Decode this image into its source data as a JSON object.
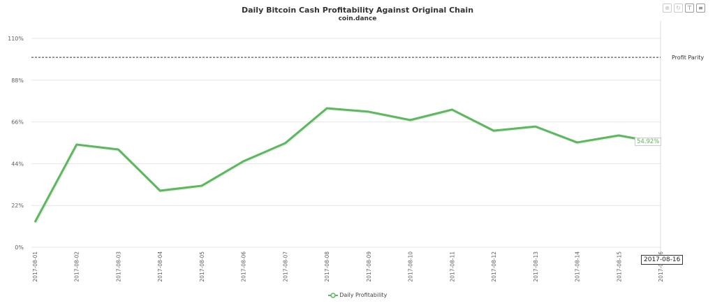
{
  "toolbar": {
    "zoom_icon": "zoom-icon",
    "reset_icon": "reset-icon",
    "pin_icon": "pin-icon",
    "menu_icon": "menu-icon"
  },
  "tooltip": {
    "x_value": "2017-08-16",
    "y_value": "54.92%"
  },
  "chart_data": {
    "type": "line",
    "title": "Daily Bitcoin Cash Profitability Against Original Chain",
    "subtitle": "coin.dance",
    "xlabel": "",
    "ylabel": "",
    "categories": [
      "2017-08-01",
      "2017-08-02",
      "2017-08-03",
      "2017-08-04",
      "2017-08-05",
      "2017-08-06",
      "2017-08-07",
      "2017-08-08",
      "2017-08-09",
      "2017-08-10",
      "2017-08-11",
      "2017-08-12",
      "2017-08-13",
      "2017-08-14",
      "2017-08-15",
      "2017-08-16"
    ],
    "series": [
      {
        "name": "Daily Profitability",
        "color": "#5cb85c",
        "values": [
          13.2,
          54.1,
          51.5,
          29.8,
          32.4,
          45.3,
          54.8,
          73.2,
          71.4,
          67.0,
          72.5,
          61.4,
          63.6,
          55.2,
          58.9,
          54.92
        ]
      }
    ],
    "ylim": [
      0,
      110
    ],
    "yticks": [
      "0%",
      "22%",
      "44%",
      "66%",
      "88%",
      "110%"
    ],
    "ytick_values": [
      0,
      22,
      44,
      66,
      88,
      110
    ],
    "plot_line": {
      "label": "Profit Parity",
      "value": 100,
      "style": "dashed",
      "color": "#333333"
    },
    "grid": true,
    "legend": "bottom-center"
  }
}
